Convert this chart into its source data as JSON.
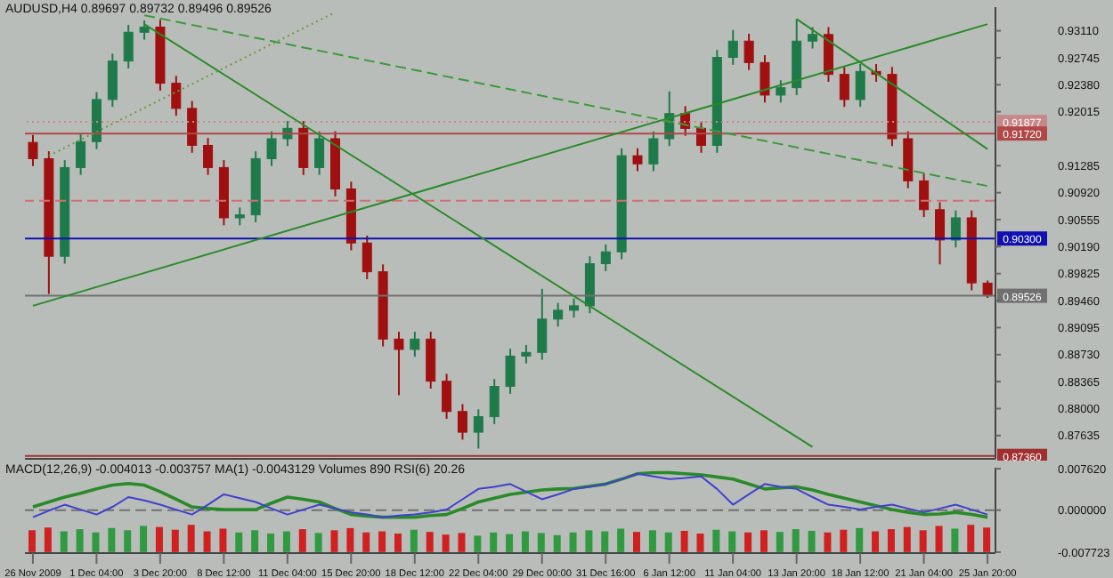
{
  "chart_data": [
    {
      "type": "candlestick",
      "title": "AUDUSD,H4 0.89697 0.89732 0.89496 0.89526",
      "tick_labels": "y",
      "categories": [
        null,
        null,
        null,
        null,
        null,
        null,
        null,
        null,
        null,
        null,
        null,
        null,
        null,
        null,
        null,
        null,
        null,
        null,
        null,
        null,
        null,
        null,
        null,
        null,
        null,
        null,
        null,
        null,
        null,
        null,
        null,
        null,
        null,
        null,
        null,
        null,
        null,
        null,
        null,
        null,
        null,
        null,
        null,
        null,
        null,
        null,
        null,
        null,
        null,
        null,
        null,
        null,
        null,
        null,
        null,
        null,
        null,
        null,
        null,
        null,
        null
      ],
      "ylim": [
        0.8732,
        0.9343
      ],
      "yticks": [
        {
          "value": 0.9311,
          "label": "0.93110"
        },
        {
          "value": 0.92745,
          "label": "0.92745"
        },
        {
          "value": 0.9238,
          "label": "0.92380"
        },
        {
          "value": 0.92015,
          "label": "0.92015"
        },
        {
          "value": 0.91285,
          "label": "0.91285"
        },
        {
          "value": 0.9092,
          "label": "0.90920"
        },
        {
          "value": 0.90555,
          "label": "0.90555"
        },
        {
          "value": 0.9019,
          "label": "0.90190"
        },
        {
          "value": 0.89825,
          "label": "0.89825"
        },
        {
          "value": 0.8946,
          "label": "0.89460"
        },
        {
          "value": 0.89095,
          "label": "0.89095"
        },
        {
          "value": 0.8873,
          "label": "0.88730"
        },
        {
          "value": 0.88365,
          "label": "0.88365"
        },
        {
          "value": 0.88,
          "label": "0.88000"
        },
        {
          "value": 0.87635,
          "label": "0.87635"
        }
      ],
      "ref_lines": [
        {
          "axis": "y",
          "value": 0.91877,
          "label": "0.91877",
          "color": "#c88888",
          "line_style": "dotted"
        },
        {
          "axis": "y",
          "value": 0.9172,
          "label": "0.91720",
          "color": "#b04848"
        },
        {
          "axis": "y",
          "value": 0.9081,
          "color": "#d07070",
          "line_style": "dashed"
        },
        {
          "axis": "y",
          "value": 0.903,
          "label": "0.90300",
          "color": "#1010b0"
        },
        {
          "axis": "y",
          "value": 0.89526,
          "label": "0.89526",
          "color": "#707070"
        },
        {
          "axis": "y",
          "value": 0.8736,
          "label": "0.87360",
          "color": "#a03030"
        }
      ],
      "series": [
        {
          "ohlc": [
            [
              0.916,
              0.917,
              0.9128,
              0.9138
            ],
            [
              0.9138,
              0.9148,
              0.8955,
              0.9006
            ],
            [
              0.9006,
              0.9136,
              0.8996,
              0.9126
            ],
            [
              0.9126,
              0.9171,
              0.9116,
              0.9161
            ],
            [
              0.9161,
              0.9228,
              0.9151,
              0.9218
            ],
            [
              0.9218,
              0.928,
              0.9208,
              0.927
            ],
            [
              0.927,
              0.9319,
              0.926,
              0.9309
            ],
            [
              0.9309,
              0.9325,
              0.9299,
              0.9316
            ],
            [
              0.9316,
              0.9326,
              0.923,
              0.924
            ],
            [
              0.924,
              0.925,
              0.9196,
              0.9206
            ],
            [
              0.9206,
              0.9216,
              0.9146,
              0.9156
            ],
            [
              0.9156,
              0.9166,
              0.9116,
              0.9126
            ],
            [
              0.9126,
              0.9136,
              0.9048,
              0.9058
            ],
            [
              0.9058,
              0.9072,
              0.9048,
              0.9062
            ],
            [
              0.9062,
              0.9148,
              0.9052,
              0.9138
            ],
            [
              0.9138,
              0.9175,
              0.9128,
              0.9165
            ],
            [
              0.9165,
              0.9189,
              0.9155,
              0.9179
            ],
            [
              0.9179,
              0.9189,
              0.9116,
              0.9126
            ],
            [
              0.9126,
              0.9175,
              0.9116,
              0.9165
            ],
            [
              0.9165,
              0.9175,
              0.9087,
              0.9097
            ],
            [
              0.9097,
              0.9107,
              0.9014,
              0.9024
            ],
            [
              0.9024,
              0.9034,
              0.8975,
              0.8985
            ],
            [
              0.8985,
              0.8995,
              0.8884,
              0.8894
            ],
            [
              0.8894,
              0.8904,
              0.8818,
              0.888
            ],
            [
              0.888,
              0.8904,
              0.887,
              0.8894
            ],
            [
              0.8894,
              0.8904,
              0.8827,
              0.8837
            ],
            [
              0.8837,
              0.8847,
              0.8786,
              0.8796
            ],
            [
              0.8796,
              0.8806,
              0.8758,
              0.8768
            ],
            [
              0.8768,
              0.8799,
              0.8746,
              0.8789
            ],
            [
              0.8789,
              0.884,
              0.8779,
              0.883
            ],
            [
              0.883,
              0.8881,
              0.882,
              0.8871
            ],
            [
              0.8871,
              0.8886,
              0.8861,
              0.8876
            ],
            [
              0.8876,
              0.8962,
              0.8866,
              0.8921
            ],
            [
              0.8921,
              0.8943,
              0.8911,
              0.8933
            ],
            [
              0.8933,
              0.8949,
              0.8923,
              0.8939
            ],
            [
              0.8939,
              0.9006,
              0.8929,
              0.8996
            ],
            [
              0.8996,
              0.9022,
              0.8986,
              0.9012
            ],
            [
              0.9012,
              0.9152,
              0.9002,
              0.9142
            ],
            [
              0.9142,
              0.9152,
              0.9121,
              0.9131
            ],
            [
              0.9131,
              0.9175,
              0.9121,
              0.9165
            ],
            [
              0.9165,
              0.9229,
              0.9155,
              0.9199
            ],
            [
              0.9199,
              0.9209,
              0.9169,
              0.9179
            ],
            [
              0.9179,
              0.9189,
              0.9146,
              0.9156
            ],
            [
              0.9156,
              0.9285,
              0.9146,
              0.9275
            ],
            [
              0.9275,
              0.9312,
              0.9265,
              0.9297
            ],
            [
              0.9297,
              0.9307,
              0.9258,
              0.9268
            ],
            [
              0.9268,
              0.9278,
              0.9214,
              0.9224
            ],
            [
              0.9224,
              0.9244,
              0.9214,
              0.9234
            ],
            [
              0.9234,
              0.9327,
              0.9224,
              0.9297
            ],
            [
              0.9297,
              0.9316,
              0.9287,
              0.9306
            ],
            [
              0.9306,
              0.9316,
              0.9242,
              0.9252
            ],
            [
              0.9252,
              0.9262,
              0.9208,
              0.9218
            ],
            [
              0.9218,
              0.9266,
              0.9208,
              0.9256
            ],
            [
              0.9256,
              0.9266,
              0.9242,
              0.9252
            ],
            [
              0.9252,
              0.9262,
              0.9155,
              0.9165
            ],
            [
              0.9165,
              0.9175,
              0.9098,
              0.9108
            ],
            [
              0.9108,
              0.9118,
              0.9059,
              0.9069
            ],
            [
              0.9069,
              0.9079,
              0.8995,
              0.9028
            ],
            [
              0.9028,
              0.9068,
              0.9018,
              0.9058
            ],
            [
              0.9058,
              0.9068,
              0.896,
              0.897
            ],
            [
              0.89697,
              0.89732,
              0.89496,
              0.89526
            ]
          ],
          "colors": [
            "#a01010",
            "#a01010",
            "#1f7a4a",
            "#1f7a4a",
            "#1f7a4a",
            "#1f7a4a",
            "#1f7a4a",
            "#1f7a4a",
            "#a01010",
            "#a01010",
            "#a01010",
            "#a01010",
            "#a01010",
            "#1f7a4a",
            "#1f7a4a",
            "#1f7a4a",
            "#1f7a4a",
            "#a01010",
            "#1f7a4a",
            "#a01010",
            "#a01010",
            "#a01010",
            "#a01010",
            "#a01010",
            "#1f7a4a",
            "#a01010",
            "#a01010",
            "#a01010",
            "#1f7a4a",
            "#1f7a4a",
            "#1f7a4a",
            "#1f7a4a",
            "#1f7a4a",
            "#1f7a4a",
            "#1f7a4a",
            "#1f7a4a",
            "#1f7a4a",
            "#1f7a4a",
            "#a01010",
            "#1f7a4a",
            "#1f7a4a",
            "#a01010",
            "#a01010",
            "#1f7a4a",
            "#1f7a4a",
            "#a01010",
            "#a01010",
            "#1f7a4a",
            "#1f7a4a",
            "#1f7a4a",
            "#a01010",
            "#a01010",
            "#1f7a4a",
            "#a01010",
            "#a01010",
            "#a01010",
            "#a01010",
            "#a01010",
            "#1f7a4a",
            "#a01010",
            "#a01010"
          ]
        },
        {
          "type": "line",
          "color": "#2a8a2a",
          "line_style": "solid",
          "values": [
            null,
            null,
            null,
            null,
            null,
            null,
            null,
            0.932,
            null,
            null,
            null,
            null,
            null,
            null,
            null,
            null,
            null,
            null,
            null,
            null,
            null,
            null,
            null,
            null,
            null,
            null,
            null,
            null,
            null,
            null,
            null,
            null,
            null,
            null,
            null,
            null,
            null,
            null,
            null,
            null,
            null,
            null,
            null,
            null,
            null,
            null,
            null,
            null,
            null,
            0.8748,
            null,
            null,
            null,
            null,
            null,
            null,
            null,
            null,
            null,
            null,
            null
          ]
        },
        {
          "type": "line",
          "color": "#2a8a2a",
          "line_style": "solid",
          "values": [
            0.8939,
            null,
            null,
            null,
            null,
            null,
            null,
            null,
            null,
            null,
            null,
            null,
            null,
            null,
            null,
            null,
            null,
            null,
            null,
            null,
            null,
            null,
            null,
            null,
            null,
            null,
            null,
            null,
            null,
            null,
            null,
            null,
            null,
            null,
            null,
            null,
            null,
            null,
            null,
            null,
            null,
            null,
            null,
            null,
            null,
            null,
            null,
            null,
            null,
            null,
            null,
            null,
            null,
            null,
            null,
            null,
            null,
            null,
            null,
            null,
            0.932
          ]
        },
        {
          "type": "line",
          "color": "#2a8a2a",
          "line_style": "solid",
          "values": [
            null,
            null,
            null,
            null,
            null,
            null,
            null,
            null,
            null,
            null,
            null,
            null,
            null,
            null,
            null,
            null,
            null,
            null,
            null,
            null,
            null,
            null,
            null,
            null,
            null,
            null,
            null,
            null,
            null,
            null,
            null,
            null,
            null,
            null,
            null,
            null,
            null,
            null,
            null,
            null,
            null,
            null,
            null,
            null,
            null,
            null,
            null,
            null,
            0.9327,
            null,
            null,
            null,
            null,
            null,
            null,
            null,
            null,
            null,
            null,
            null,
            0.9151
          ]
        },
        {
          "type": "line",
          "color": "#3c9a3c",
          "line_style": "dashed",
          "values": [
            null,
            null,
            null,
            null,
            null,
            null,
            null,
            0.9332,
            null,
            null,
            null,
            null,
            null,
            null,
            null,
            null,
            null,
            null,
            null,
            null,
            null,
            null,
            null,
            null,
            null,
            null,
            null,
            null,
            null,
            null,
            null,
            null,
            null,
            null,
            null,
            null,
            null,
            null,
            null,
            null,
            null,
            null,
            null,
            null,
            null,
            null,
            null,
            null,
            null,
            null,
            null,
            null,
            null,
            null,
            null,
            null,
            null,
            null,
            null,
            null,
            0.9101
          ]
        },
        {
          "type": "line",
          "color": "#6a9a3a",
          "line_style": "dotted",
          "values": [
            null,
            0.9142,
            null,
            null,
            null,
            null,
            null,
            null,
            null,
            null,
            null,
            null,
            null,
            null,
            null,
            null,
            null,
            null,
            null,
            0.9336,
            null,
            null,
            null,
            null,
            null,
            null,
            null,
            null,
            null,
            null,
            null,
            null,
            null,
            null,
            null,
            null,
            null,
            null,
            null,
            null,
            null,
            null,
            null,
            null,
            null,
            null,
            null,
            null,
            null,
            null,
            null,
            null,
            null,
            null,
            null,
            null,
            null,
            null,
            null,
            null,
            null
          ]
        }
      ]
    },
    {
      "type": "bar",
      "title": "MACD(12,26,9) -0.004013 -0.003757 MA(1) -0.0043129 Volumes 890 RSI(6) 20.26",
      "categories": [
        "26 Nov 2009",
        null,
        null,
        null,
        "1 Dec 04:00",
        null,
        null,
        null,
        "3 Dec 20:00",
        null,
        null,
        null,
        "8 Dec 12:00",
        null,
        null,
        null,
        "11 Dec 04:00",
        null,
        null,
        null,
        "15 Dec 20:00",
        null,
        null,
        null,
        "18 Dec 12:00",
        null,
        null,
        null,
        "22 Dec 04:00",
        null,
        null,
        null,
        "29 Dec 00:00",
        null,
        null,
        null,
        "31 Dec 16:00",
        null,
        null,
        null,
        "6 Jan 12:00",
        null,
        null,
        null,
        "11 Jan 04:00",
        null,
        null,
        null,
        "13 Jan 20:00",
        null,
        null,
        null,
        "18 Jan 12:00",
        null,
        null,
        null,
        "21 Jan 04:00",
        null,
        null,
        null,
        "25 Jan 20:00"
      ],
      "ylim": [
        -0.0079,
        0.0078
      ],
      "yticks": [
        {
          "value": 0.00762,
          "label": "0.007620"
        },
        {
          "value": 0,
          "label": "0.000000"
        },
        {
          "value": -0.007723,
          "label": "-0.007723"
        }
      ],
      "ref_lines": [
        {
          "axis": "y",
          "value": 0,
          "color": "#707070",
          "line_style": "dashed"
        }
      ],
      "series": [
        {
          "base": [
            -0.0077,
            -0.0077,
            -0.0077,
            -0.0077,
            -0.0077,
            -0.0077,
            -0.0077,
            -0.0077,
            -0.0077,
            -0.0077,
            -0.0077,
            -0.0077,
            -0.0077,
            -0.0077,
            -0.0077,
            -0.0077,
            -0.0077,
            -0.0077,
            -0.0077,
            -0.0077,
            -0.0077,
            -0.0077,
            -0.0077,
            -0.0077,
            -0.0077,
            -0.0077,
            -0.0077,
            -0.0077,
            -0.0077,
            -0.0077,
            -0.0077,
            -0.0077,
            -0.0077,
            -0.0077,
            -0.0077,
            -0.0077,
            -0.0077,
            -0.0077,
            -0.0077,
            -0.0077,
            -0.0077,
            -0.0077,
            -0.0077,
            -0.0077,
            -0.0077,
            -0.0077,
            -0.0077,
            -0.0077,
            -0.0077,
            -0.0077,
            -0.0077,
            -0.0077,
            -0.0077,
            -0.0077,
            -0.0077,
            -0.0077,
            -0.0077,
            -0.0077,
            -0.0077,
            -0.0077,
            -0.0077
          ],
          "values": [
            0.004,
            0.0045,
            0.0038,
            0.0042,
            0.0036,
            0.0044,
            0.004,
            0.0048,
            0.0046,
            0.0041,
            0.005,
            0.0038,
            0.0043,
            0.0036,
            0.004,
            0.0034,
            0.0038,
            0.0042,
            0.0035,
            0.004,
            0.0044,
            0.0036,
            0.0038,
            0.0034,
            0.0041,
            0.0037,
            0.0032,
            0.0035,
            0.003,
            0.0036,
            0.0033,
            0.0038,
            0.0035,
            0.0031,
            0.0036,
            0.004,
            0.0038,
            0.0043,
            0.0037,
            0.004,
            0.0036,
            0.0039,
            0.0034,
            0.0041,
            0.0038,
            0.0036,
            0.004,
            0.0037,
            0.0042,
            0.0039,
            0.0036,
            0.0041,
            0.0044,
            0.0038,
            0.0042,
            0.0046,
            0.004,
            0.0048,
            0.0043,
            0.005,
            0.0045
          ],
          "colors": [
            "#d02020",
            "#d02020",
            "#2f9a3f",
            "#2f9a3f",
            "#2f9a3f",
            "#2f9a3f",
            "#2f9a3f",
            "#2f9a3f",
            "#d02020",
            "#d02020",
            "#d02020",
            "#d02020",
            "#d02020",
            "#2f9a3f",
            "#2f9a3f",
            "#2f9a3f",
            "#2f9a3f",
            "#d02020",
            "#2f9a3f",
            "#d02020",
            "#d02020",
            "#d02020",
            "#d02020",
            "#d02020",
            "#2f9a3f",
            "#d02020",
            "#d02020",
            "#d02020",
            "#2f9a3f",
            "#2f9a3f",
            "#2f9a3f",
            "#2f9a3f",
            "#2f9a3f",
            "#2f9a3f",
            "#2f9a3f",
            "#2f9a3f",
            "#2f9a3f",
            "#2f9a3f",
            "#d02020",
            "#2f9a3f",
            "#2f9a3f",
            "#d02020",
            "#d02020",
            "#2f9a3f",
            "#2f9a3f",
            "#d02020",
            "#d02020",
            "#2f9a3f",
            "#2f9a3f",
            "#2f9a3f",
            "#d02020",
            "#d02020",
            "#2f9a3f",
            "#d02020",
            "#d02020",
            "#d02020",
            "#d02020",
            "#d02020",
            "#2f9a3f",
            "#d02020",
            "#d02020"
          ]
        },
        {
          "type": "line",
          "color": "#2a8a2a",
          "values": [
            0.0006,
            0.0015,
            0.0024,
            0.0031,
            0.0039,
            0.0046,
            0.0049,
            0.0046,
            0.0034,
            0.002,
            0.0006,
            0.0003,
            0.0001,
            0.0001,
            0.0001,
            0.0013,
            0.0024,
            0.002,
            0.0015,
            0.0003,
            -0.0008,
            -0.0011,
            -0.0013,
            -0.0013,
            -0.0013,
            -0.001,
            -0.0008,
            0.0003,
            0.0015,
            0.0022,
            0.0029,
            0.0033,
            0.0037,
            0.0039,
            0.004,
            0.0044,
            0.0048,
            0.0057,
            0.0067,
            0.0069,
            0.0069,
            0.0067,
            0.0065,
            0.0061,
            0.0057,
            0.0048,
            0.0039,
            0.0041,
            0.0043,
            0.0037,
            0.0029,
            0.0022,
            0.0015,
            0.0008,
            0.0001,
            -0.0004,
            -0.0008,
            -0.0007,
            -0.0004,
            -0.0008,
            -0.0013
          ]
        },
        {
          "type": "line",
          "color": "#4040d0",
          "values": [
            -0.0013,
            -0.0001,
            0.001,
            0.0001,
            -0.0008,
            0.0006,
            0.0024,
            0.0018,
            0.001,
            0.0001,
            -0.0008,
            0.001,
            0.0029,
            0.0022,
            0.0015,
            0.0003,
            -0.0008,
            0.0001,
            0.001,
            0.0003,
            -0.0004,
            -0.0008,
            -0.0013,
            -0.001,
            -0.0008,
            -0.0004,
            0.0001,
            0.002,
            0.0039,
            0.0043,
            0.0048,
            0.0034,
            0.002,
            0.0029,
            0.0039,
            0.0043,
            0.0048,
            0.0057,
            0.0067,
            0.0062,
            0.0057,
            0.0059,
            0.0062,
            0.0039,
            0.001,
            0.0029,
            0.0048,
            0.0043,
            0.0039,
            0.0024,
            0.001,
            0.0006,
            0.0001,
            0.0006,
            0.001,
            0.0003,
            -0.0004,
            0.0003,
            0.001,
            0.0001,
            -0.0008
          ]
        }
      ]
    }
  ]
}
